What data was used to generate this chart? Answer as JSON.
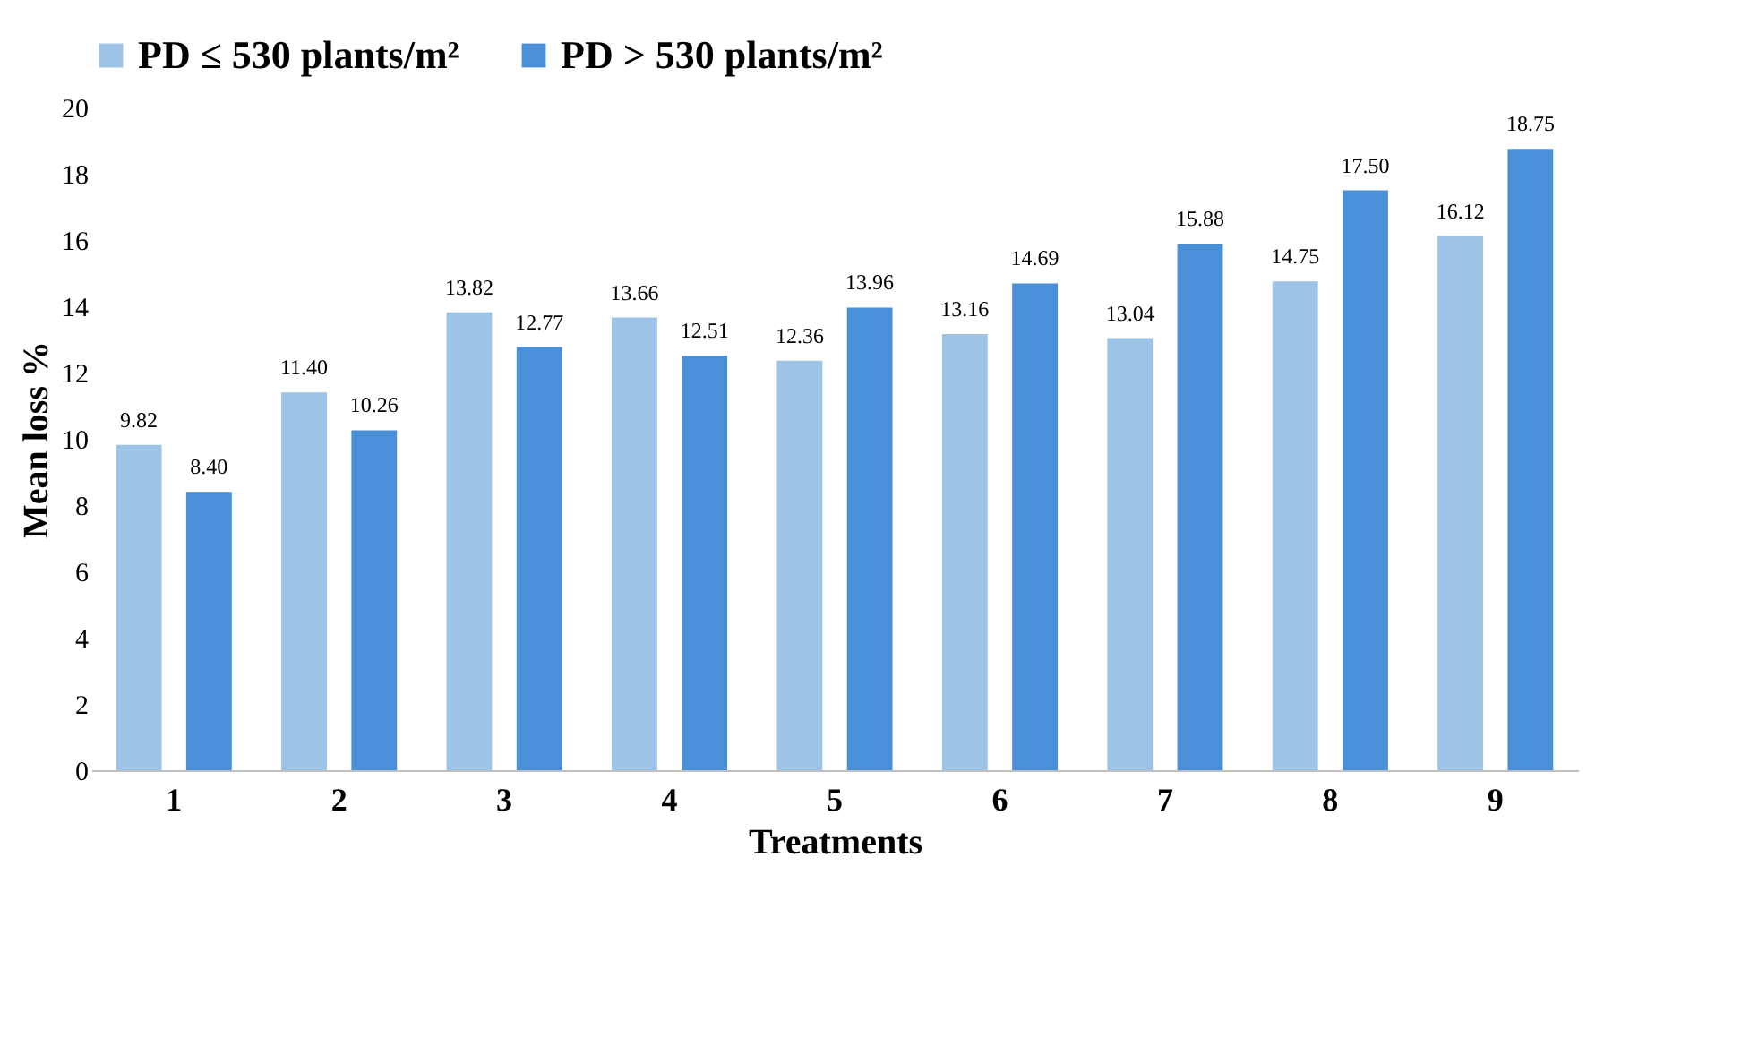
{
  "chart_data": {
    "type": "bar",
    "xlabel": "Treatments",
    "ylabel": "Mean loss %",
    "categories": [
      "1",
      "2",
      "3",
      "4",
      "5",
      "6",
      "7",
      "8",
      "9"
    ],
    "series": [
      {
        "name": "PD ≤ 530 plants/m²",
        "color": "#9dc3e6",
        "values": [
          9.82,
          11.4,
          13.82,
          13.66,
          12.36,
          13.16,
          13.04,
          14.75,
          16.12
        ],
        "value_labels": [
          "9.82",
          "11.40",
          "13.82",
          "13.66",
          "12.36",
          "13.16",
          "13.04",
          "14.75",
          "16.12"
        ]
      },
      {
        "name": "PD > 530 plants/m²",
        "color": "#4a90d9",
        "values": [
          8.4,
          10.26,
          12.77,
          12.51,
          13.96,
          14.69,
          15.88,
          17.5,
          18.75
        ],
        "value_labels": [
          "8.40",
          "10.26",
          "12.77",
          "12.51",
          "13.96",
          "14.69",
          "15.88",
          "17.50",
          "18.75"
        ]
      }
    ],
    "ylim": [
      0,
      20
    ],
    "yticks": [
      0,
      2,
      4,
      6,
      8,
      10,
      12,
      14,
      16,
      18,
      20
    ],
    "grid": false,
    "legend": "top"
  }
}
